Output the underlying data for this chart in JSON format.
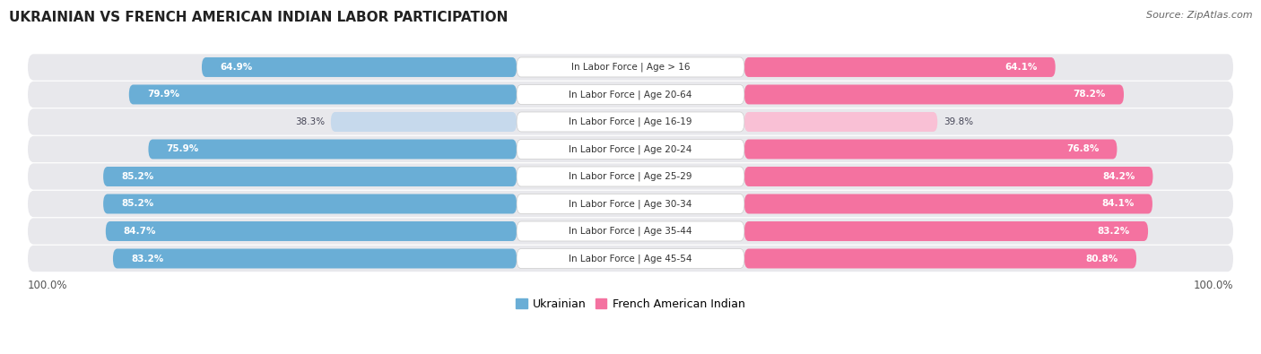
{
  "title": "UKRAINIAN VS FRENCH AMERICAN INDIAN LABOR PARTICIPATION",
  "source": "Source: ZipAtlas.com",
  "categories": [
    "In Labor Force | Age > 16",
    "In Labor Force | Age 20-64",
    "In Labor Force | Age 16-19",
    "In Labor Force | Age 20-24",
    "In Labor Force | Age 25-29",
    "In Labor Force | Age 30-34",
    "In Labor Force | Age 35-44",
    "In Labor Force | Age 45-54"
  ],
  "ukrainian_values": [
    64.9,
    79.9,
    38.3,
    75.9,
    85.2,
    85.2,
    84.7,
    83.2
  ],
  "french_values": [
    64.1,
    78.2,
    39.8,
    76.8,
    84.2,
    84.1,
    83.2,
    80.8
  ],
  "ukrainian_color": "#6AAED6",
  "ukrainian_color_light": "#C6D9EC",
  "french_color": "#F472A0",
  "french_color_light": "#F9C0D5",
  "row_bg_color": "#E8E8EC",
  "background_color": "#ffffff",
  "max_value": 100.0,
  "legend_ukrainian": "Ukrainian",
  "legend_french": "French American Indian",
  "bottom_left_label": "100.0%",
  "bottom_right_label": "100.0%",
  "title_fontsize": 11,
  "source_fontsize": 8,
  "label_fontsize": 7.5,
  "value_fontsize": 7.5
}
